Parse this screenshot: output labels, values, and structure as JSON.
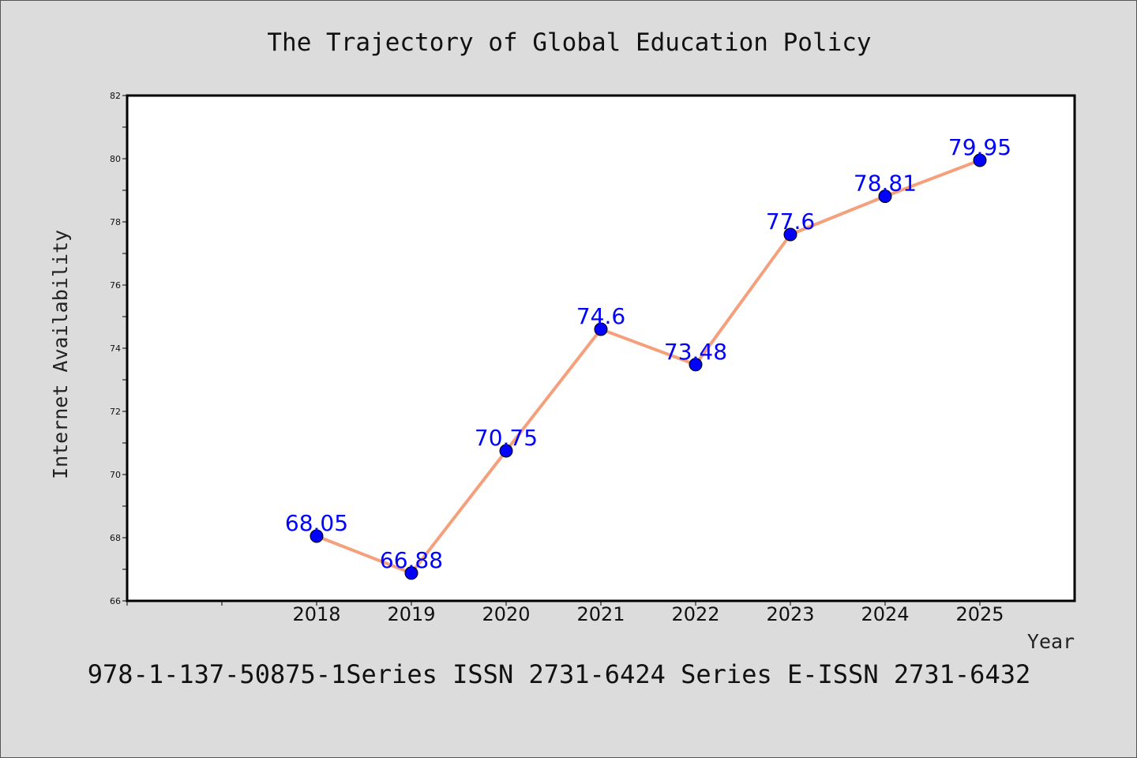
{
  "chart_data": {
    "type": "line",
    "title": "The Trajectory of Global Education Policy",
    "xlabel": "Year",
    "ylabel": "Internet Availability",
    "categories": [
      "2018",
      "2019",
      "2020",
      "2021",
      "2022",
      "2023",
      "2024",
      "2025"
    ],
    "series": [
      {
        "values": [
          68.05,
          66.88,
          70.75,
          74.6,
          73.48,
          77.6,
          78.81,
          79.95
        ]
      }
    ],
    "data_labels": [
      "68.05",
      "66.88",
      "70.75",
      "74.6",
      "73.48",
      "77.6",
      "78.81",
      "79.95"
    ],
    "ylim": [
      66,
      82
    ],
    "yticks": [
      66,
      68,
      70,
      72,
      74,
      76,
      78,
      80,
      82
    ],
    "x_slots": 10,
    "first_category_slot": 2,
    "grid": false,
    "legend": "none",
    "colors": {
      "line": "#f4a07c",
      "marker": "#0000ff",
      "data_label": "#0000ff",
      "background": "#dcdcdc",
      "plot_background": "#ffffff"
    }
  },
  "footer": "978-1-137-50875-1Series ISSN 2731-6424 Series E-ISSN 2731-6432"
}
